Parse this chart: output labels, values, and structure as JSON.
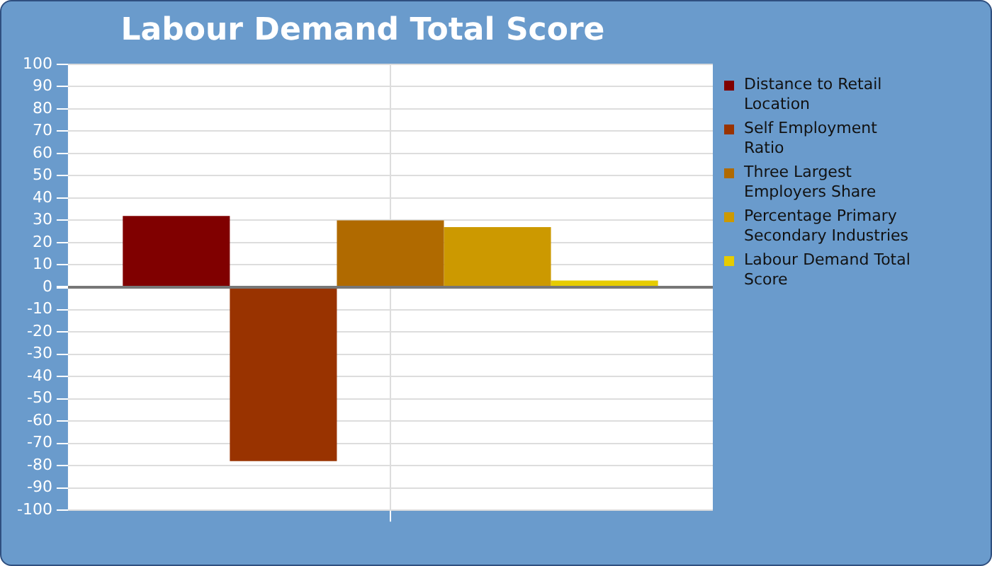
{
  "chart_data": {
    "type": "bar",
    "title": "Labour Demand Total Score",
    "categories": [
      null
    ],
    "series": [
      {
        "name": "Distance to Retail Location",
        "color": "#800000",
        "values": [
          32
        ]
      },
      {
        "name": "Self Employment Ratio",
        "color": "#993300",
        "values": [
          -78
        ]
      },
      {
        "name": "Three Largest Employers Share",
        "color": "#b06a00",
        "values": [
          30
        ]
      },
      {
        "name": "Percentage Primary Secondary Industries",
        "color": "#cc9900",
        "values": [
          27
        ]
      },
      {
        "name": "Labour Demand Total Score",
        "color": "#e6cc00",
        "values": [
          3
        ]
      }
    ],
    "ylim": [
      -100,
      100
    ],
    "yticks": [
      -100,
      -90,
      -80,
      -70,
      -60,
      -50,
      -40,
      -30,
      -20,
      -10,
      0,
      10,
      20,
      30,
      40,
      50,
      60,
      70,
      80,
      90,
      100
    ],
    "grid": true,
    "legend": "right"
  }
}
